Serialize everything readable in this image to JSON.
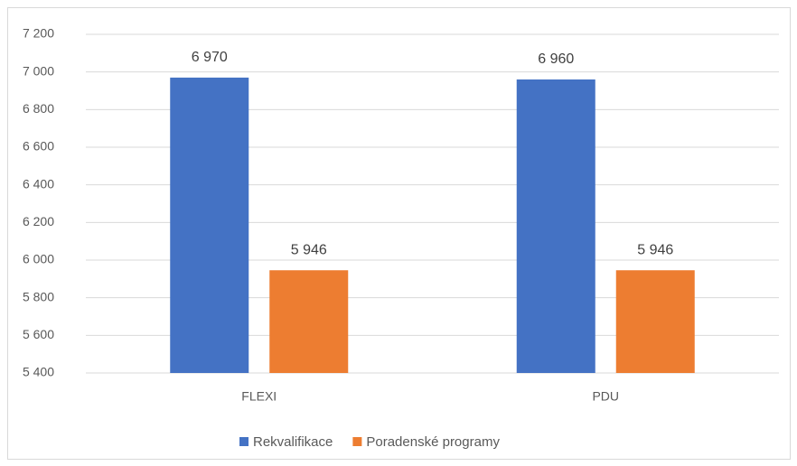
{
  "chart_data": {
    "type": "bar",
    "categories": [
      "FLEXI",
      "PDU"
    ],
    "series": [
      {
        "name": "Rekvalifikace",
        "color": "#4472c4",
        "values": [
          6970,
          6960
        ],
        "value_labels": [
          "6 970",
          "6 960"
        ]
      },
      {
        "name": "Poradenské programy",
        "color": "#ed7d31",
        "values": [
          5946,
          5946
        ],
        "value_labels": [
          "5 946",
          "5 946"
        ]
      }
    ],
    "ylim": [
      5400,
      7200
    ],
    "yticks": [
      {
        "value": 5400,
        "label": "5 400"
      },
      {
        "value": 5600,
        "label": "5 600"
      },
      {
        "value": 5800,
        "label": "5 800"
      },
      {
        "value": 6000,
        "label": "6 000"
      },
      {
        "value": 6200,
        "label": "6 200"
      },
      {
        "value": 6400,
        "label": "6 400"
      },
      {
        "value": 6600,
        "label": "6 600"
      },
      {
        "value": 6800,
        "label": "6 800"
      },
      {
        "value": 7000,
        "label": "7 000"
      },
      {
        "value": 7200,
        "label": "7 200"
      }
    ],
    "grid": true,
    "legend": "bottom"
  }
}
